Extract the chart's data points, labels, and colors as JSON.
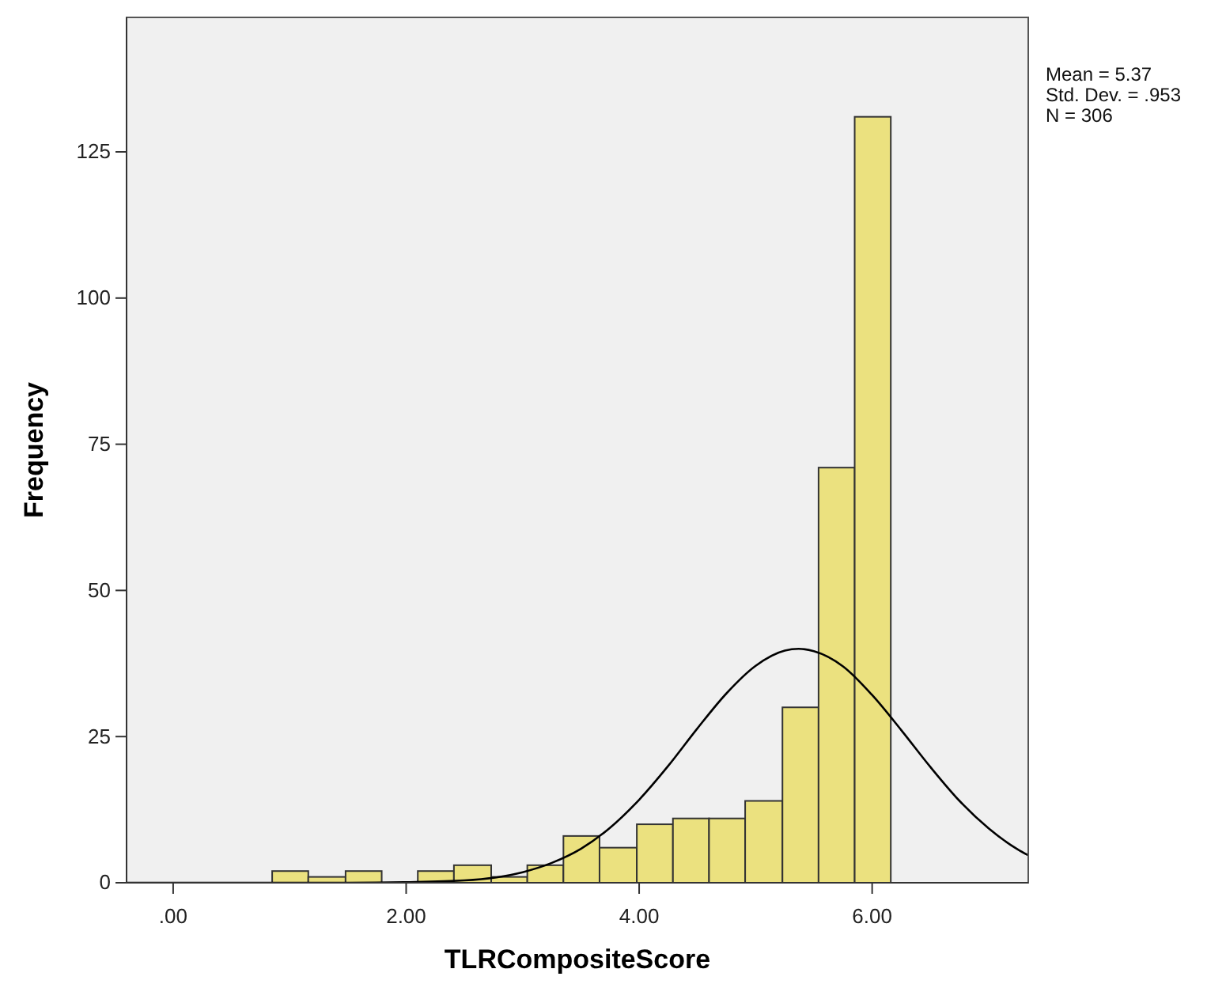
{
  "chart_data": {
    "type": "histogram",
    "xlabel": "TLRCompositeScore",
    "ylabel": "Frequency",
    "xlim": [
      -0.4,
      7.34
    ],
    "ylim": [
      0,
      148
    ],
    "xticks": [
      {
        "value": 0,
        "label": ".00"
      },
      {
        "value": 2,
        "label": "2.00"
      },
      {
        "value": 4,
        "label": "4.00"
      },
      {
        "value": 6,
        "label": "6.00"
      }
    ],
    "yticks": [
      0,
      25,
      50,
      75,
      100,
      125
    ],
    "grid": false,
    "series": [
      {
        "color": "#ebe17f",
        "bins": [
          0.85,
          1.16,
          1.48,
          1.79,
          2.1,
          2.41,
          2.73,
          3.04,
          3.35,
          3.66,
          3.98,
          4.29,
          4.6,
          4.91,
          5.23,
          5.54,
          5.85,
          6.16
        ],
        "values": [
          2,
          1,
          2,
          0,
          2,
          3,
          1,
          3,
          8,
          6,
          10,
          11,
          11,
          14,
          30,
          71,
          131
        ]
      },
      {
        "type": "line",
        "color": "#000000",
        "marker": "none",
        "x": [
          -0.4,
          0.5,
          1.0,
          1.5,
          2.0,
          2.5,
          3.0,
          3.25,
          3.5,
          3.75,
          4.0,
          4.25,
          4.5,
          4.75,
          5.0,
          5.25,
          5.37,
          5.5,
          5.75,
          6.0,
          6.25,
          6.5,
          6.75,
          7.0,
          7.25,
          7.34
        ],
        "values": [
          0,
          0,
          0,
          0,
          0.1,
          0.4,
          1.8,
          3.4,
          5.8,
          9.4,
          14.2,
          20.0,
          26.4,
          32.4,
          37.1,
          39.7,
          40.0,
          39.6,
          37.0,
          32.1,
          26.1,
          19.8,
          14.0,
          9.3,
          5.7,
          4.7
        ]
      }
    ],
    "annotations": [
      "Mean = 5.37",
      "Std. Dev. = .953",
      "N = 306"
    ]
  }
}
